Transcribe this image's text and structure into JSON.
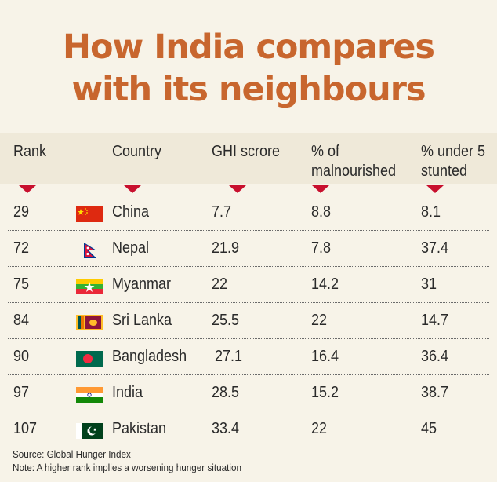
{
  "title": {
    "line1": "How India compares",
    "line2": "with its neighbours"
  },
  "chart_data": {
    "type": "table",
    "columns": [
      "Rank",
      "Country",
      "GHI scrore",
      "% of malnourished",
      "% under 5 stunted"
    ],
    "header": {
      "rank": "Rank",
      "country": "Country",
      "ghi": "GHI scrore",
      "malnourished_line1": "% of",
      "malnourished_line2": "malnourished",
      "stunted_line1": "% under 5",
      "stunted_line2": "stunted"
    },
    "rows": [
      {
        "rank": "29",
        "country": "China",
        "ghi": "7.7",
        "malnourished": "8.8",
        "stunted": "8.1",
        "flag": "china-flag-icon"
      },
      {
        "rank": "72",
        "country": "Nepal",
        "ghi": "21.9",
        "malnourished": "7.8",
        "stunted": "37.4",
        "flag": "nepal-flag-icon"
      },
      {
        "rank": "75",
        "country": "Myanmar",
        "ghi": "22",
        "malnourished": "14.2",
        "stunted": "31",
        "flag": "myanmar-flag-icon"
      },
      {
        "rank": "84",
        "country": "Sri Lanka",
        "ghi": "25.5",
        "malnourished": "22",
        "stunted": "14.7",
        "flag": "sri-lanka-flag-icon"
      },
      {
        "rank": "90",
        "country": "Bangladesh",
        "ghi": "27.1",
        "malnourished": "16.4",
        "stunted": "36.4",
        "flag": "bangladesh-flag-icon"
      },
      {
        "rank": "97",
        "country": "India",
        "ghi": "28.5",
        "malnourished": "15.2",
        "stunted": "38.7",
        "flag": "india-flag-icon"
      },
      {
        "rank": "107",
        "country": "Pakistan",
        "ghi": "33.4",
        "malnourished": "22",
        "stunted": "45",
        "flag": "pakistan-flag-icon"
      }
    ]
  },
  "footer": {
    "source": "Source: Global Hunger Index",
    "note": "Note: A higher rank implies a worsening hunger situation"
  },
  "colors": {
    "title": "#c8662e",
    "arrow": "#c8102e",
    "background": "#f7f3e8",
    "header_band": "#efe9d9"
  }
}
